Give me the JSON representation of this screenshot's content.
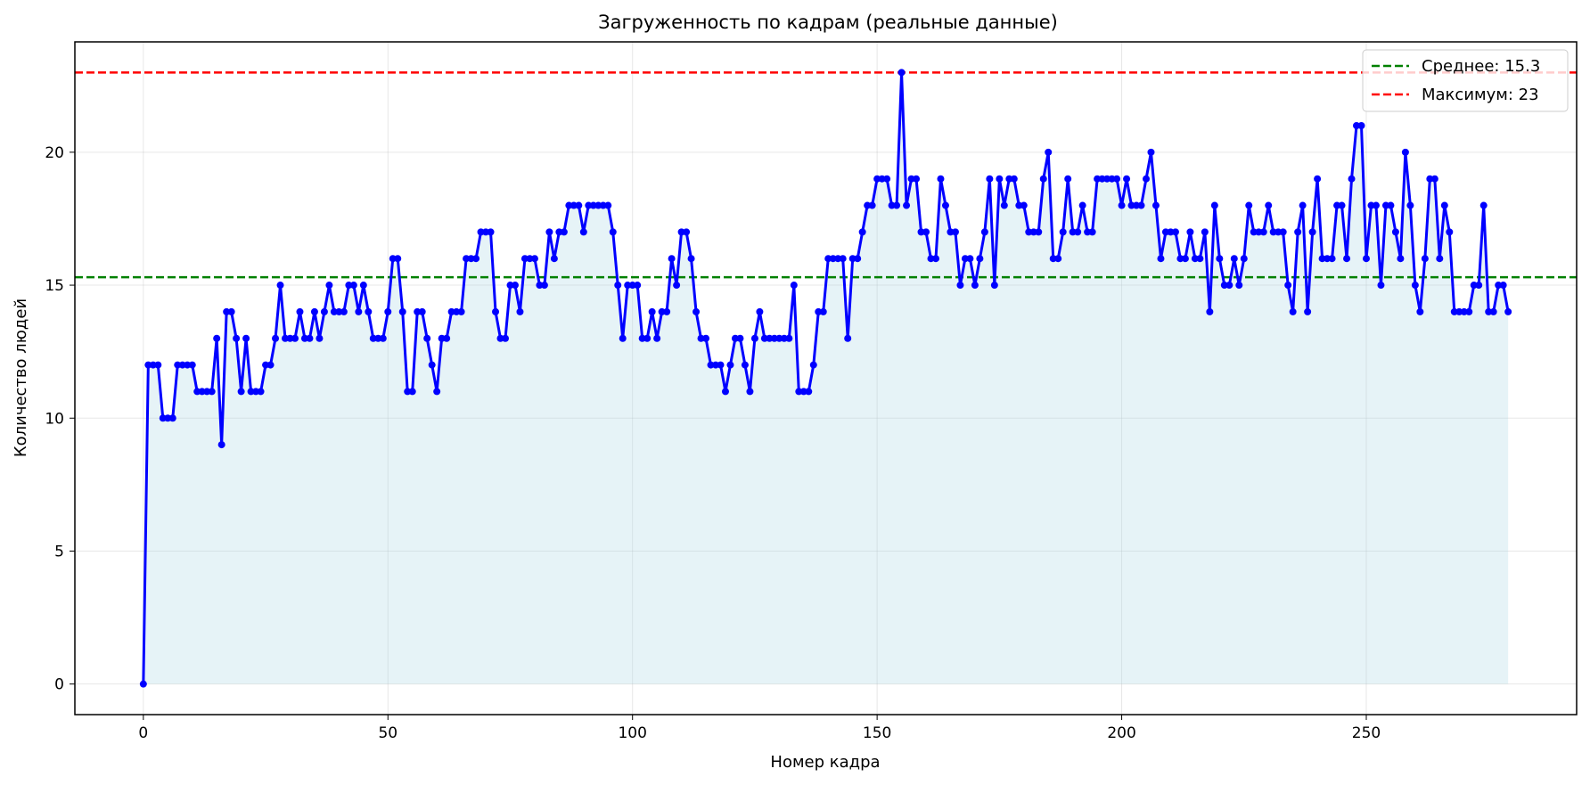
{
  "chart_data": {
    "type": "line",
    "title": "Загруженность по кадрам (реальные данные)",
    "xlabel": "Номер кадра",
    "ylabel": "Количество людей",
    "xlim": [
      -14,
      293
    ],
    "ylim": [
      -1.15,
      24.15
    ],
    "xticks": [
      0,
      50,
      100,
      150,
      200,
      250
    ],
    "yticks": [
      0,
      5,
      10,
      15,
      20
    ],
    "grid": true,
    "legend_position": "top-right",
    "series": [
      {
        "kind": "line-markers-filled",
        "color": "#0000ff",
        "fill_color": "#add8e6",
        "x_start": 0,
        "x_step": 1,
        "values": [
          0,
          12,
          12,
          12,
          10,
          10,
          10,
          12,
          12,
          12,
          12,
          11,
          11,
          11,
          11,
          13,
          9,
          14,
          14,
          13,
          11,
          13,
          11,
          11,
          11,
          12,
          12,
          13,
          15,
          13,
          13,
          13,
          14,
          13,
          13,
          14,
          13,
          14,
          15,
          14,
          14,
          14,
          15,
          15,
          14,
          15,
          14,
          13,
          13,
          13,
          14,
          16,
          16,
          14,
          11,
          11,
          14,
          14,
          13,
          12,
          11,
          13,
          13,
          14,
          14,
          14,
          16,
          16,
          16,
          17,
          17,
          17,
          14,
          13,
          13,
          15,
          15,
          14,
          16,
          16,
          16,
          15,
          15,
          17,
          16,
          17,
          17,
          18,
          18,
          18,
          17,
          18,
          18,
          18,
          18,
          18,
          17,
          15,
          13,
          15,
          15,
          15,
          13,
          13,
          14,
          13,
          14,
          14,
          16,
          15,
          17,
          17,
          16,
          14,
          13,
          13,
          12,
          12,
          12,
          11,
          12,
          13,
          13,
          12,
          11,
          13,
          14,
          13,
          13,
          13,
          13,
          13,
          13,
          15,
          11,
          11,
          11,
          12,
          14,
          14,
          16,
          16,
          16,
          16,
          13,
          16,
          16,
          17,
          18,
          18,
          19,
          19,
          19,
          18,
          18,
          23,
          18,
          19,
          19,
          17,
          17,
          16,
          16,
          19,
          18,
          17,
          17,
          15,
          16,
          16,
          15,
          16,
          17,
          19,
          15,
          19,
          18,
          19,
          19,
          18,
          18,
          17,
          17,
          17,
          19,
          20,
          16,
          16,
          17,
          19,
          17,
          17,
          18,
          17,
          17,
          19,
          19,
          19,
          19,
          19,
          18,
          19,
          18,
          18,
          18,
          19,
          20,
          18,
          16,
          17,
          17,
          17,
          16,
          16,
          17,
          16,
          16,
          17,
          14,
          18,
          16,
          15,
          15,
          16,
          15,
          16,
          18,
          17,
          17,
          17,
          18,
          17,
          17,
          17,
          15,
          14,
          17,
          18,
          14,
          17,
          19,
          16,
          16,
          16,
          18,
          18,
          16,
          19,
          21,
          21,
          16,
          18,
          18,
          15,
          18,
          18,
          17,
          16,
          20,
          18,
          15,
          14,
          16,
          19,
          19,
          16,
          18,
          17,
          14,
          14,
          14,
          14,
          15,
          15,
          18,
          14,
          14,
          15,
          15,
          14
        ]
      }
    ],
    "hlines": [
      {
        "name": "Среднее: 15.3",
        "y": 15.3,
        "color": "#008000",
        "style": "dashed"
      },
      {
        "name": "Максимум: 23",
        "y": 23,
        "color": "#ff0000",
        "style": "dashed"
      }
    ]
  }
}
